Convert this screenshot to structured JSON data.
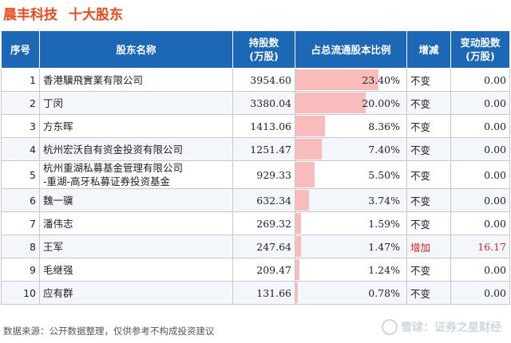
{
  "header": {
    "company": "晨丰科技",
    "section": "十大股东"
  },
  "table": {
    "columns": [
      "序号",
      "股东名称",
      "持股数\n(万股)",
      "占总流通股本比例",
      "增减",
      "变动股数\n(万股)"
    ],
    "rows": [
      {
        "rank": "1",
        "name": "香港驥飛實業有限公司",
        "shares": "3954.60",
        "ratio": "23.40%",
        "ratio_value": 23.4,
        "change": "不变",
        "change_shares": "0.00",
        "up": false
      },
      {
        "rank": "2",
        "name": "丁闵",
        "shares": "3380.04",
        "ratio": "20.00%",
        "ratio_value": 20.0,
        "change": "不变",
        "change_shares": "0.00",
        "up": false
      },
      {
        "rank": "3",
        "name": "方东晖",
        "shares": "1413.06",
        "ratio": "8.36%",
        "ratio_value": 8.36,
        "change": "不变",
        "change_shares": "0.00",
        "up": false
      },
      {
        "rank": "4",
        "name": "杭州宏沃自有资金投资有限公司",
        "shares": "1251.47",
        "ratio": "7.40%",
        "ratio_value": 7.4,
        "change": "不变",
        "change_shares": "0.00",
        "up": false
      },
      {
        "rank": "5",
        "name": "杭州重湖私募基金管理有限公司\n-重湖-高牙私募证券投资基金",
        "shares": "929.33",
        "ratio": "5.50%",
        "ratio_value": 5.5,
        "change": "不变",
        "change_shares": "0.00",
        "up": false
      },
      {
        "rank": "6",
        "name": "魏一骥",
        "shares": "632.34",
        "ratio": "3.74%",
        "ratio_value": 3.74,
        "change": "不变",
        "change_shares": "0.00",
        "up": false
      },
      {
        "rank": "7",
        "name": "潘伟志",
        "shares": "269.32",
        "ratio": "1.59%",
        "ratio_value": 1.59,
        "change": "不变",
        "change_shares": "0.00",
        "up": false
      },
      {
        "rank": "8",
        "name": "王军",
        "shares": "247.64",
        "ratio": "1.47%",
        "ratio_value": 1.47,
        "change": "增加",
        "change_shares": "16.17",
        "up": true
      },
      {
        "rank": "9",
        "name": "毛继强",
        "shares": "209.47",
        "ratio": "1.24%",
        "ratio_value": 1.24,
        "change": "不变",
        "change_shares": "0.00",
        "up": false
      },
      {
        "rank": "10",
        "name": "应有群",
        "shares": "131.66",
        "ratio": "0.78%",
        "ratio_value": 0.78,
        "change": "不变",
        "change_shares": "0.00",
        "up": false
      }
    ]
  },
  "colors": {
    "header_bg": "#1c67b6",
    "title": "#e8491d",
    "bar": "#f9bcbc",
    "increase": "#e02020"
  },
  "footer": {
    "source": "数据来源：公开数据整理，仅供参考不构成投资建议"
  },
  "brand": {
    "logo_icon": "snowball-logo-icon",
    "text": "雪球：证券之星财经"
  }
}
